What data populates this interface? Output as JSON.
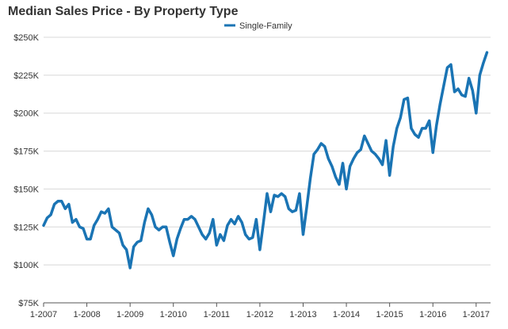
{
  "chart_data": {
    "type": "line",
    "title": "Median Sales Price - By Property Type",
    "xlabel": "",
    "ylabel": "",
    "ylim": [
      75000,
      250000
    ],
    "xlim": [
      "2007-01",
      "2017-05"
    ],
    "y_ticks": [
      75000,
      100000,
      125000,
      150000,
      175000,
      200000,
      225000,
      250000
    ],
    "y_tick_labels": [
      "$75K",
      "$100K",
      "$125K",
      "$150K",
      "$175K",
      "$200K",
      "$225K",
      "$250K"
    ],
    "x_ticks": [
      "2007-01",
      "2008-01",
      "2009-01",
      "2010-01",
      "2011-01",
      "2012-01",
      "2013-01",
      "2014-01",
      "2015-01",
      "2016-01",
      "2017-01"
    ],
    "x_tick_labels": [
      "1-2007",
      "1-2008",
      "1-2009",
      "1-2010",
      "1-2011",
      "1-2012",
      "1-2013",
      "1-2014",
      "1-2015",
      "1-2016",
      "1-2017"
    ],
    "grid": true,
    "legend_position": "top-center",
    "series": [
      {
        "name": "Single-Family",
        "color": "#1a74b4",
        "points": [
          [
            "2007-01",
            126000
          ],
          [
            "2007-02",
            131000
          ],
          [
            "2007-03",
            133000
          ],
          [
            "2007-04",
            140000
          ],
          [
            "2007-05",
            142000
          ],
          [
            "2007-06",
            142000
          ],
          [
            "2007-07",
            137000
          ],
          [
            "2007-08",
            140000
          ],
          [
            "2007-09",
            128000
          ],
          [
            "2007-10",
            130000
          ],
          [
            "2007-11",
            125000
          ],
          [
            "2007-12",
            124000
          ],
          [
            "2008-01",
            117000
          ],
          [
            "2008-02",
            117000
          ],
          [
            "2008-03",
            126000
          ],
          [
            "2008-04",
            130000
          ],
          [
            "2008-05",
            135000
          ],
          [
            "2008-06",
            134000
          ],
          [
            "2008-07",
            137000
          ],
          [
            "2008-08",
            125000
          ],
          [
            "2008-09",
            123000
          ],
          [
            "2008-10",
            121000
          ],
          [
            "2008-11",
            113000
          ],
          [
            "2008-12",
            110000
          ],
          [
            "2009-01",
            98000
          ],
          [
            "2009-02",
            112000
          ],
          [
            "2009-03",
            115000
          ],
          [
            "2009-04",
            116000
          ],
          [
            "2009-05",
            128000
          ],
          [
            "2009-06",
            137000
          ],
          [
            "2009-07",
            133000
          ],
          [
            "2009-08",
            125000
          ],
          [
            "2009-09",
            123000
          ],
          [
            "2009-10",
            125000
          ],
          [
            "2009-11",
            125000
          ],
          [
            "2009-12",
            115000
          ],
          [
            "2010-01",
            106000
          ],
          [
            "2010-02",
            117000
          ],
          [
            "2010-03",
            124000
          ],
          [
            "2010-04",
            130000
          ],
          [
            "2010-05",
            130000
          ],
          [
            "2010-06",
            132000
          ],
          [
            "2010-07",
            130000
          ],
          [
            "2010-08",
            125000
          ],
          [
            "2010-09",
            120000
          ],
          [
            "2010-10",
            117000
          ],
          [
            "2010-11",
            121000
          ],
          [
            "2010-12",
            130000
          ],
          [
            "2011-01",
            113000
          ],
          [
            "2011-02",
            120000
          ],
          [
            "2011-03",
            116000
          ],
          [
            "2011-04",
            126000
          ],
          [
            "2011-05",
            130000
          ],
          [
            "2011-06",
            127000
          ],
          [
            "2011-07",
            132000
          ],
          [
            "2011-08",
            128000
          ],
          [
            "2011-09",
            120000
          ],
          [
            "2011-10",
            117000
          ],
          [
            "2011-11",
            118000
          ],
          [
            "2011-12",
            130000
          ],
          [
            "2012-01",
            110000
          ],
          [
            "2012-02",
            128000
          ],
          [
            "2012-03",
            147000
          ],
          [
            "2012-04",
            135000
          ],
          [
            "2012-05",
            146000
          ],
          [
            "2012-06",
            145000
          ],
          [
            "2012-07",
            147000
          ],
          [
            "2012-08",
            145000
          ],
          [
            "2012-09",
            137000
          ],
          [
            "2012-10",
            135000
          ],
          [
            "2012-11",
            136000
          ],
          [
            "2012-12",
            147000
          ],
          [
            "2013-01",
            120000
          ],
          [
            "2013-02",
            138000
          ],
          [
            "2013-03",
            157000
          ],
          [
            "2013-04",
            173000
          ],
          [
            "2013-05",
            176000
          ],
          [
            "2013-06",
            180000
          ],
          [
            "2013-07",
            178000
          ],
          [
            "2013-08",
            170000
          ],
          [
            "2013-09",
            165000
          ],
          [
            "2013-10",
            158000
          ],
          [
            "2013-11",
            153000
          ],
          [
            "2013-12",
            167000
          ],
          [
            "2014-01",
            150000
          ],
          [
            "2014-02",
            165000
          ],
          [
            "2014-03",
            170000
          ],
          [
            "2014-04",
            174000
          ],
          [
            "2014-05",
            176000
          ],
          [
            "2014-06",
            185000
          ],
          [
            "2014-07",
            180000
          ],
          [
            "2014-08",
            175000
          ],
          [
            "2014-09",
            173000
          ],
          [
            "2014-10",
            170000
          ],
          [
            "2014-11",
            166000
          ],
          [
            "2014-12",
            182000
          ],
          [
            "2015-01",
            159000
          ],
          [
            "2015-02",
            178000
          ],
          [
            "2015-03",
            190000
          ],
          [
            "2015-04",
            197000
          ],
          [
            "2015-05",
            209000
          ],
          [
            "2015-06",
            210000
          ],
          [
            "2015-07",
            190000
          ],
          [
            "2015-08",
            186000
          ],
          [
            "2015-09",
            184000
          ],
          [
            "2015-10",
            190000
          ],
          [
            "2015-11",
            190000
          ],
          [
            "2015-12",
            195000
          ],
          [
            "2016-01",
            174000
          ],
          [
            "2016-02",
            192000
          ],
          [
            "2016-03",
            206000
          ],
          [
            "2016-04",
            218000
          ],
          [
            "2016-05",
            230000
          ],
          [
            "2016-06",
            232000
          ],
          [
            "2016-07",
            214000
          ],
          [
            "2016-08",
            216000
          ],
          [
            "2016-09",
            212000
          ],
          [
            "2016-10",
            211000
          ],
          [
            "2016-11",
            223000
          ],
          [
            "2016-12",
            215000
          ],
          [
            "2017-01",
            200000
          ],
          [
            "2017-02",
            225000
          ],
          [
            "2017-03",
            233000
          ],
          [
            "2017-04",
            240000
          ]
        ]
      }
    ]
  }
}
